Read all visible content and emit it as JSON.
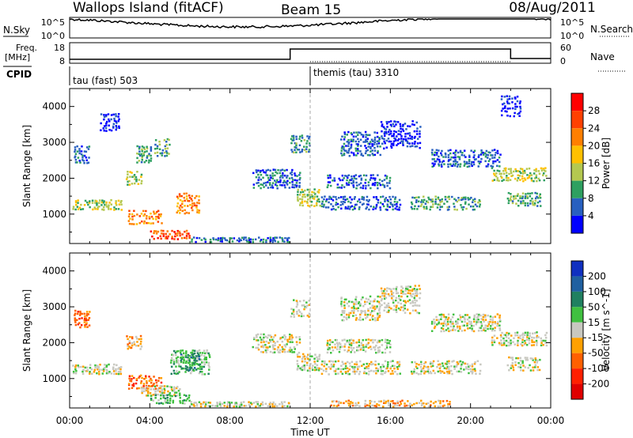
{
  "header": {
    "title": "Wallops Island (fitACF)",
    "beam": "Beam 15",
    "date": "08/Aug/2011"
  },
  "aux_labels": {
    "nsky": "N.Sky",
    "nsearch": "N.Search",
    "freq_line1": "Freq.",
    "freq_line2": "[MHz]",
    "nave": "Nave",
    "cpid": "CPID",
    "cpid_1": "tau (fast) 503",
    "cpid_2": "themis (tau) 3310",
    "noise_top": "10^5",
    "noise_bottom": "10^0",
    "freq_top": "18",
    "freq_bottom": "8",
    "nave_top": "60",
    "nave_bottom": "0"
  },
  "chart_data": [
    {
      "type": "heatmap",
      "name": "power",
      "ylabel": "Slant Range [km]",
      "xlabel": "Time UT",
      "xticks": [
        "00:00",
        "04:00",
        "08:00",
        "12:00",
        "16:00",
        "20:00",
        "00:00"
      ],
      "xlim": [
        0,
        24
      ],
      "ylim": [
        180,
        4500
      ],
      "yticks": [
        1000,
        2000,
        3000,
        4000
      ],
      "colorbar": {
        "label": "Power [dB]",
        "ticks": [
          "4",
          "8",
          "12",
          "16",
          "20",
          "24",
          "28"
        ],
        "colors": [
          "#0000ff",
          "#2860c0",
          "#2ea060",
          "#b4c850",
          "#ffc000",
          "#ff7f00",
          "#ff4000",
          "#ff0000"
        ]
      },
      "regions": [
        {
          "t0": 0.1,
          "t1": 2.6,
          "r0": 1100,
          "r1": 1400,
          "level": 3
        },
        {
          "t0": 0.2,
          "t1": 1.0,
          "r0": 2400,
          "r1": 2900,
          "level": 1
        },
        {
          "t0": 1.5,
          "t1": 2.5,
          "r0": 3300,
          "r1": 3800,
          "level": 0
        },
        {
          "t0": 2.8,
          "t1": 3.6,
          "r0": 1800,
          "r1": 2200,
          "level": 3
        },
        {
          "t0": 2.9,
          "t1": 4.6,
          "r0": 700,
          "r1": 1100,
          "level": 5
        },
        {
          "t0": 3.3,
          "t1": 4.1,
          "r0": 2400,
          "r1": 2900,
          "level": 2
        },
        {
          "t0": 4.2,
          "t1": 5.0,
          "r0": 2600,
          "r1": 3100,
          "level": 2
        },
        {
          "t0": 5.3,
          "t1": 6.5,
          "r0": 1000,
          "r1": 1600,
          "level": 5
        },
        {
          "t0": 4.0,
          "t1": 6.0,
          "r0": 280,
          "r1": 550,
          "level": 6
        },
        {
          "t0": 6.0,
          "t1": 11.0,
          "r0": 200,
          "r1": 350,
          "level": 1
        },
        {
          "t0": 9.1,
          "t1": 11.5,
          "r0": 1700,
          "r1": 2250,
          "level": 1
        },
        {
          "t0": 11.0,
          "t1": 12.0,
          "r0": 2700,
          "r1": 3200,
          "level": 2
        },
        {
          "t0": 11.3,
          "t1": 12.5,
          "r0": 1200,
          "r1": 1700,
          "level": 3
        },
        {
          "t0": 12.5,
          "t1": 16.5,
          "r0": 1100,
          "r1": 1500,
          "level": 1
        },
        {
          "t0": 12.8,
          "t1": 16.0,
          "r0": 1700,
          "r1": 2100,
          "level": 1
        },
        {
          "t0": 13.5,
          "t1": 15.5,
          "r0": 2600,
          "r1": 3300,
          "level": 1
        },
        {
          "t0": 15.5,
          "t1": 17.5,
          "r0": 2800,
          "r1": 3600,
          "level": 0
        },
        {
          "t0": 17.0,
          "t1": 20.5,
          "r0": 1100,
          "r1": 1500,
          "level": 2
        },
        {
          "t0": 18.0,
          "t1": 21.5,
          "r0": 2300,
          "r1": 2800,
          "level": 1
        },
        {
          "t0": 21.0,
          "t1": 23.8,
          "r0": 1900,
          "r1": 2300,
          "level": 3
        },
        {
          "t0": 21.8,
          "t1": 23.5,
          "r0": 1200,
          "r1": 1600,
          "level": 2
        },
        {
          "t0": 21.5,
          "t1": 22.5,
          "r0": 3700,
          "r1": 4300,
          "level": 0
        }
      ]
    },
    {
      "type": "heatmap",
      "name": "velocity",
      "ylabel": "Slant Range [km]",
      "xlabel": "Time UT",
      "xticks": [
        "00:00",
        "04:00",
        "08:00",
        "12:00",
        "16:00",
        "20:00",
        "00:00"
      ],
      "xlim": [
        0,
        24
      ],
      "ylim": [
        180,
        4500
      ],
      "yticks": [
        1000,
        2000,
        3000,
        4000
      ],
      "colorbar": {
        "label": "Velocity [m s^-1]",
        "ticks": [
          "200",
          "100",
          "50",
          "15",
          "-15",
          "-50",
          "-100",
          "-200"
        ],
        "colors": [
          "#1030c0",
          "#2060a0",
          "#208060",
          "#40c040",
          "#c8c8c0",
          "#ffa000",
          "#ff6000",
          "#ff2000",
          "#e00000"
        ]
      },
      "regions": [
        {
          "t0": 0.1,
          "t1": 2.6,
          "r0": 1100,
          "r1": 1400,
          "level": 4
        },
        {
          "t0": 0.2,
          "t1": 1.0,
          "r0": 2400,
          "r1": 2900,
          "level": 6
        },
        {
          "t0": 2.8,
          "t1": 3.6,
          "r0": 1800,
          "r1": 2200,
          "level": 5
        },
        {
          "t0": 2.9,
          "t1": 4.6,
          "r0": 700,
          "r1": 1100,
          "level": 6
        },
        {
          "t0": 3.5,
          "t1": 5.5,
          "r0": 500,
          "r1": 800,
          "level": 4
        },
        {
          "t0": 5.0,
          "t1": 7.0,
          "r0": 1100,
          "r1": 1800,
          "level": 3
        },
        {
          "t0": 5.5,
          "t1": 6.5,
          "r0": 1200,
          "r1": 1700,
          "level": 2
        },
        {
          "t0": 4.0,
          "t1": 6.0,
          "r0": 280,
          "r1": 550,
          "level": 3
        },
        {
          "t0": 6.0,
          "t1": 11.0,
          "r0": 200,
          "r1": 350,
          "level": 4
        },
        {
          "t0": 9.1,
          "t1": 11.5,
          "r0": 1700,
          "r1": 2250,
          "level": 4
        },
        {
          "t0": 11.0,
          "t1": 12.0,
          "r0": 2700,
          "r1": 3200,
          "level": 4
        },
        {
          "t0": 11.3,
          "t1": 12.5,
          "r0": 1200,
          "r1": 1700,
          "level": 4
        },
        {
          "t0": 12.5,
          "t1": 16.5,
          "r0": 1100,
          "r1": 1500,
          "level": 4
        },
        {
          "t0": 12.8,
          "t1": 16.0,
          "r0": 1700,
          "r1": 2100,
          "level": 4
        },
        {
          "t0": 13.5,
          "t1": 15.5,
          "r0": 2600,
          "r1": 3300,
          "level": 4
        },
        {
          "t0": 15.5,
          "t1": 17.5,
          "r0": 2800,
          "r1": 3600,
          "level": 4
        },
        {
          "t0": 13.0,
          "t1": 19.0,
          "r0": 200,
          "r1": 400,
          "level": 5
        },
        {
          "t0": 17.0,
          "t1": 20.5,
          "r0": 1100,
          "r1": 1500,
          "level": 4
        },
        {
          "t0": 18.0,
          "t1": 21.5,
          "r0": 2300,
          "r1": 2800,
          "level": 4
        },
        {
          "t0": 21.0,
          "t1": 23.8,
          "r0": 1900,
          "r1": 2300,
          "level": 4
        },
        {
          "t0": 21.8,
          "t1": 23.5,
          "r0": 1200,
          "r1": 1600,
          "level": 4
        }
      ]
    }
  ]
}
